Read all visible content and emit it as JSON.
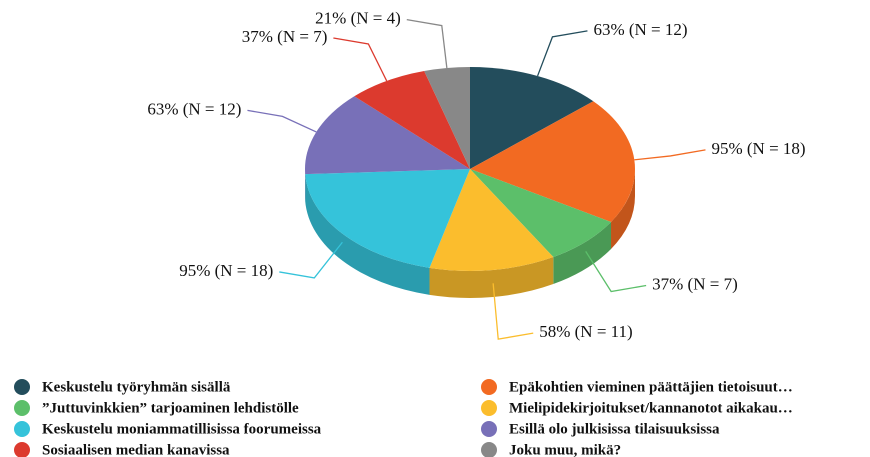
{
  "chart_data": {
    "type": "pie3d",
    "categories": [
      "Keskustelu työryhmän sisällä",
      "Epäkohtien vieminen päättäjien tietoisuut…",
      "”Juttuvinkkien” tarjoaminen lehdistölle",
      "Mielipidekirjoitukset/kannanotot aikakau…",
      "Keskustelu moniammatillisissa foorumeissa",
      "Esillä olo julkisissa tilaisuuksissa",
      "Sosiaalisen median kanavissa",
      "Joku muu, mikä?"
    ],
    "values": [
      63,
      95,
      37,
      58,
      95,
      63,
      37,
      21
    ],
    "value_labels": [
      "63% (N = 12)",
      "95% (N = 18)",
      "37% (N = 7)",
      "58% (N = 11)",
      "95% (N = 18)",
      "63% (N = 12)",
      "37% (N = 7)",
      "21% (N = 4)"
    ],
    "colors": [
      "#234d5c",
      "#f26a22",
      "#5cbf6a",
      "#fbbd2d",
      "#35c3da",
      "#7870b8",
      "#dc3a2e",
      "#888888"
    ],
    "legend": "bottom"
  }
}
